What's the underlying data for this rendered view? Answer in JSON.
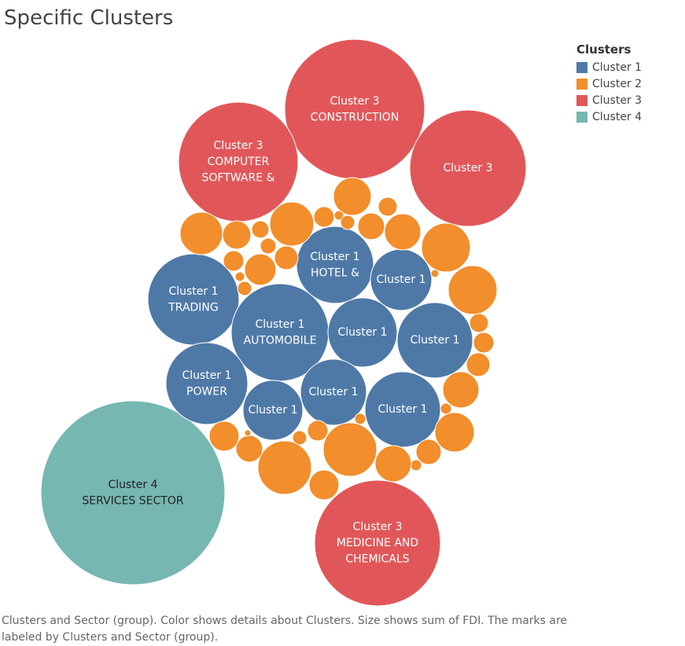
{
  "title": "Specific Clusters",
  "legend": {
    "title": "Clusters",
    "items": [
      {
        "label": "Cluster 1",
        "color": "#4e79a7"
      },
      {
        "label": "Cluster 2",
        "color": "#f28e2b"
      },
      {
        "label": "Cluster 3",
        "color": "#e15759"
      },
      {
        "label": "Cluster 4",
        "color": "#76b7b2"
      }
    ]
  },
  "caption": "Clusters and Sector (group).  Color shows details about Clusters.  Size shows sum of FDI.  The marks are labeled by Clusters and Sector (group).",
  "chart_data": {
    "type": "packed-bubble",
    "title": "Specific Clusters",
    "size_measure": "sum of FDI",
    "color_field": "Clusters",
    "marks": [
      {
        "cluster": "Cluster 3",
        "label": [
          "Cluster 3",
          "CONSTRUCTION"
        ]
      },
      {
        "cluster": "Cluster 3",
        "label": [
          "Cluster 3",
          "COMPUTER",
          "SOFTWARE &"
        ]
      },
      {
        "cluster": "Cluster 3",
        "label": [
          "Cluster 3"
        ]
      },
      {
        "cluster": "Cluster 3",
        "label": [
          "Cluster 3",
          "MEDICINE AND",
          "CHEMICALS"
        ]
      },
      {
        "cluster": "Cluster 4",
        "label": [
          "Cluster 4",
          "SERVICES SECTOR"
        ]
      },
      {
        "cluster": "Cluster 1",
        "label": [
          "Cluster 1",
          "HOTEL &"
        ]
      },
      {
        "cluster": "Cluster 1",
        "label": [
          "Cluster 1"
        ]
      },
      {
        "cluster": "Cluster 1",
        "label": [
          "Cluster 1",
          "TRADING"
        ]
      },
      {
        "cluster": "Cluster 1",
        "label": [
          "Cluster 1",
          "AUTOMOBILE"
        ]
      },
      {
        "cluster": "Cluster 1",
        "label": [
          "Cluster 1"
        ]
      },
      {
        "cluster": "Cluster 1",
        "label": [
          "Cluster 1"
        ]
      },
      {
        "cluster": "Cluster 1",
        "label": [
          "Cluster 1",
          "POWER"
        ]
      },
      {
        "cluster": "Cluster 1",
        "label": [
          "Cluster 1"
        ]
      },
      {
        "cluster": "Cluster 1",
        "label": [
          "Cluster 1"
        ]
      },
      {
        "cluster": "Cluster 1",
        "label": [
          "Cluster 1"
        ]
      },
      {
        "cluster": "Cluster 2",
        "label": []
      },
      {
        "cluster": "Cluster 2",
        "label": []
      },
      {
        "cluster": "Cluster 2",
        "label": []
      },
      {
        "cluster": "Cluster 2",
        "label": []
      },
      {
        "cluster": "Cluster 2",
        "label": []
      },
      {
        "cluster": "Cluster 2",
        "label": []
      },
      {
        "cluster": "Cluster 2",
        "label": []
      },
      {
        "cluster": "Cluster 2",
        "label": []
      },
      {
        "cluster": "Cluster 2",
        "label": []
      },
      {
        "cluster": "Cluster 2",
        "label": []
      },
      {
        "cluster": "Cluster 2",
        "label": []
      },
      {
        "cluster": "Cluster 2",
        "label": []
      },
      {
        "cluster": "Cluster 2",
        "label": []
      },
      {
        "cluster": "Cluster 2",
        "label": []
      },
      {
        "cluster": "Cluster 2",
        "label": []
      },
      {
        "cluster": "Cluster 2",
        "label": []
      },
      {
        "cluster": "Cluster 2",
        "label": []
      },
      {
        "cluster": "Cluster 2",
        "label": []
      },
      {
        "cluster": "Cluster 2",
        "label": []
      },
      {
        "cluster": "Cluster 2",
        "label": []
      },
      {
        "cluster": "Cluster 2",
        "label": []
      },
      {
        "cluster": "Cluster 2",
        "label": []
      },
      {
        "cluster": "Cluster 2",
        "label": []
      },
      {
        "cluster": "Cluster 2",
        "label": []
      },
      {
        "cluster": "Cluster 2",
        "label": []
      },
      {
        "cluster": "Cluster 2",
        "label": []
      },
      {
        "cluster": "Cluster 2",
        "label": []
      },
      {
        "cluster": "Cluster 2",
        "label": []
      },
      {
        "cluster": "Cluster 2",
        "label": []
      },
      {
        "cluster": "Cluster 2",
        "label": []
      },
      {
        "cluster": "Cluster 2",
        "label": []
      },
      {
        "cluster": "Cluster 2",
        "label": []
      },
      {
        "cluster": "Cluster 2",
        "label": []
      },
      {
        "cluster": "Cluster 2",
        "label": []
      },
      {
        "cluster": "Cluster 2",
        "label": []
      },
      {
        "cluster": "Cluster 2",
        "label": []
      },
      {
        "cluster": "Cluster 2",
        "label": []
      },
      {
        "cluster": "Cluster 2",
        "label": []
      },
      {
        "cluster": "Cluster 2",
        "label": []
      },
      {
        "cluster": "Cluster 2",
        "label": []
      },
      {
        "cluster": "Cluster 2",
        "label": []
      }
    ]
  }
}
